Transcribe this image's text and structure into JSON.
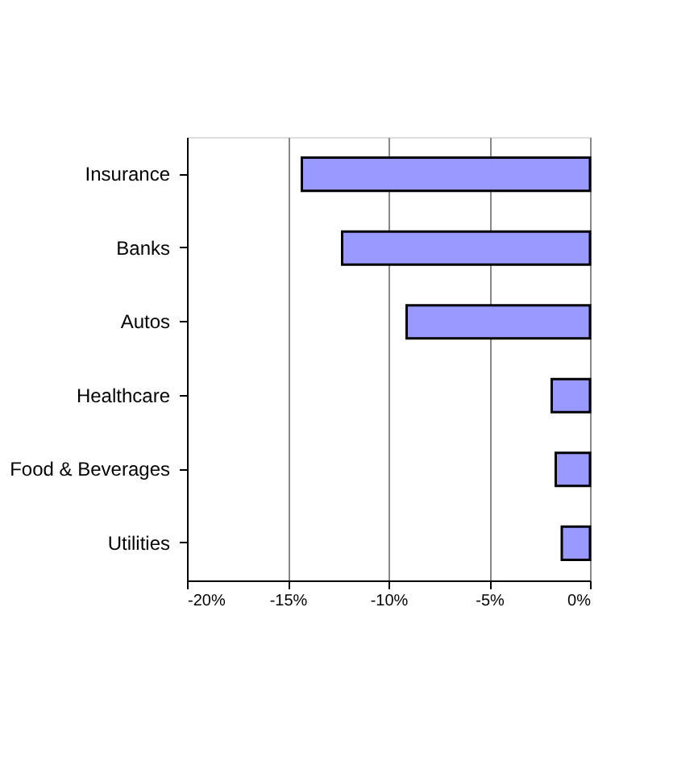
{
  "chart_data": {
    "type": "bar",
    "orientation": "horizontal",
    "categories": [
      "Insurance",
      "Banks",
      "Autos",
      "Healthcare",
      "Food & Beverages",
      "Utilities"
    ],
    "values": [
      -14.3,
      -12.3,
      -9.1,
      -1.9,
      -1.7,
      -1.4
    ],
    "color": "#9999ff",
    "xlim": [
      -20,
      0
    ],
    "xticks": [
      {
        "value": -20,
        "label": "-20%"
      },
      {
        "value": -15,
        "label": "-15%"
      },
      {
        "value": -10,
        "label": "-10%"
      },
      {
        "value": -5,
        "label": "-5%"
      },
      {
        "value": 0,
        "label": "0%"
      }
    ],
    "grid": "x"
  }
}
